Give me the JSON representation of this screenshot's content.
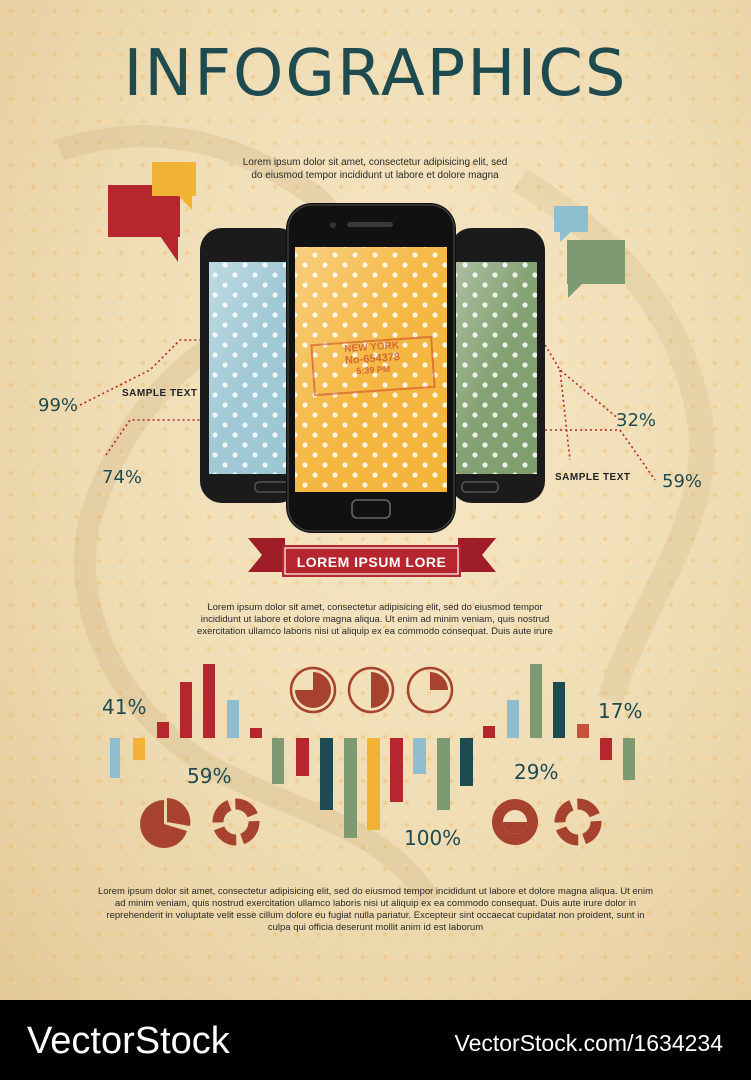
{
  "title": "INFOGRAPHICS",
  "intro": {
    "line1": "Lorem ipsum dolor sit amet, consectetur adipisicing elit, sed",
    "line2": "do eiusmod tempor incididunt ut labore et dolore magna"
  },
  "callouts": {
    "left_top_pct": "99%",
    "left_bottom_pct": "74%",
    "left_label": "SAMPLE TEXT",
    "right_top_pct": "32%",
    "right_bottom_pct": "59%",
    "right_label": "SAMPLE TEXT"
  },
  "phones": {
    "stamp_city": "NEW YORK",
    "stamp_number": "No-654378",
    "stamp_time": "5:39 PM"
  },
  "ribbon_label": "LOREM IPSUM LORE",
  "middle_text": {
    "line1": "Lorem ipsum dolor sit amet, consectetur adipisicing elit, sed do eiusmod tempor",
    "line2": "incididunt ut labore et dolore magna aliqua. Ut enim ad minim veniam, quis nostrud",
    "line3": "exercitation ullamco laboris nisi ut aliquip ex ea commodo consequat. Duis aute irure"
  },
  "stats": {
    "pct_41": "41%",
    "pct_59": "59%",
    "pct_100": "100%",
    "pct_29": "29%",
    "pct_17": "17%"
  },
  "bottom_text": {
    "line1": "Lorem ipsum dolor sit amet, consectetur adipisicing elit, sed do eiusmod tempor incididunt ut labore et dolore magna aliqua. Ut enim",
    "line2": "ad minim veniam, quis nostrud exercitation ullamco laboris nisi ut aliquip ex ea commodo consequat. Duis aute irure dolor in",
    "line3": "reprehenderit in voluptate velit esse cillum dolore eu fugiat nulla pariatur. Excepteur sint occaecat cupidatat non proident, sunt in",
    "line4": "culpa qui officia deserunt mollit anim id est laborum"
  },
  "watermark": {
    "brand": "VectorStock",
    "id_text": "VectorStock.com/1634234"
  },
  "colors": {
    "teal": "#1e4b4f",
    "red": "#b5262f",
    "yellow": "#f2b233",
    "green": "#7e9a72",
    "light_blue": "#8fbfcf",
    "rust": "#a7422f",
    "phone_screens": [
      "#9cc6d3",
      "#f4b43a",
      "#7e9d6c"
    ]
  },
  "icons": [
    "speech-bubble-icon",
    "pie-chart-icon",
    "ring-chart-icon"
  ]
}
